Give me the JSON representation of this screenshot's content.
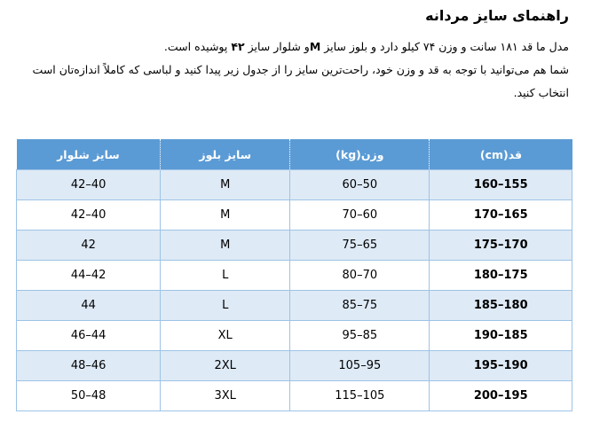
{
  "title": "راهنمای سایز مردانه",
  "para": {
    "l1a": "مدل ما قد ۱۸۱ سانت و وزن ۷۴ کیلو دارد و بلوز سایز ",
    "l1b": "M",
    "l1c": "و شلوار سایز ",
    "l1d": "۴۲",
    "l1e": " پوشیده است.",
    "l2": "شما هم می‌توانید با توجه به قد و وزن خود، راحت‌ترین سایز را از جدول زیر پیدا کنید و لباسی که کاملاً اندازه‌تان است انتخاب کنید."
  },
  "table": {
    "headers": [
      "قد(cm)",
      "وزن(kg)",
      "سایز بلوز",
      "سایز شلوار"
    ],
    "rows": [
      [
        "155–160",
        "50–60",
        "M",
        "40–42"
      ],
      [
        "165–170",
        "60–70",
        "M",
        "40–42"
      ],
      [
        "170–175",
        "65–75",
        "M",
        "42"
      ],
      [
        "175–180",
        "70–80",
        "L",
        "42–44"
      ],
      [
        "180–185",
        "75–85",
        "L",
        "44"
      ],
      [
        "185–190",
        "85–95",
        "XL",
        "44–46"
      ],
      [
        "190–195",
        "95–105",
        "2XL",
        "46–48"
      ],
      [
        "195–200",
        "105–115",
        "3XL",
        "48–50"
      ]
    ]
  },
  "colors": {
    "header": "#5b9bd5",
    "band": "#deeaf6",
    "border": "#9dc3e6"
  }
}
